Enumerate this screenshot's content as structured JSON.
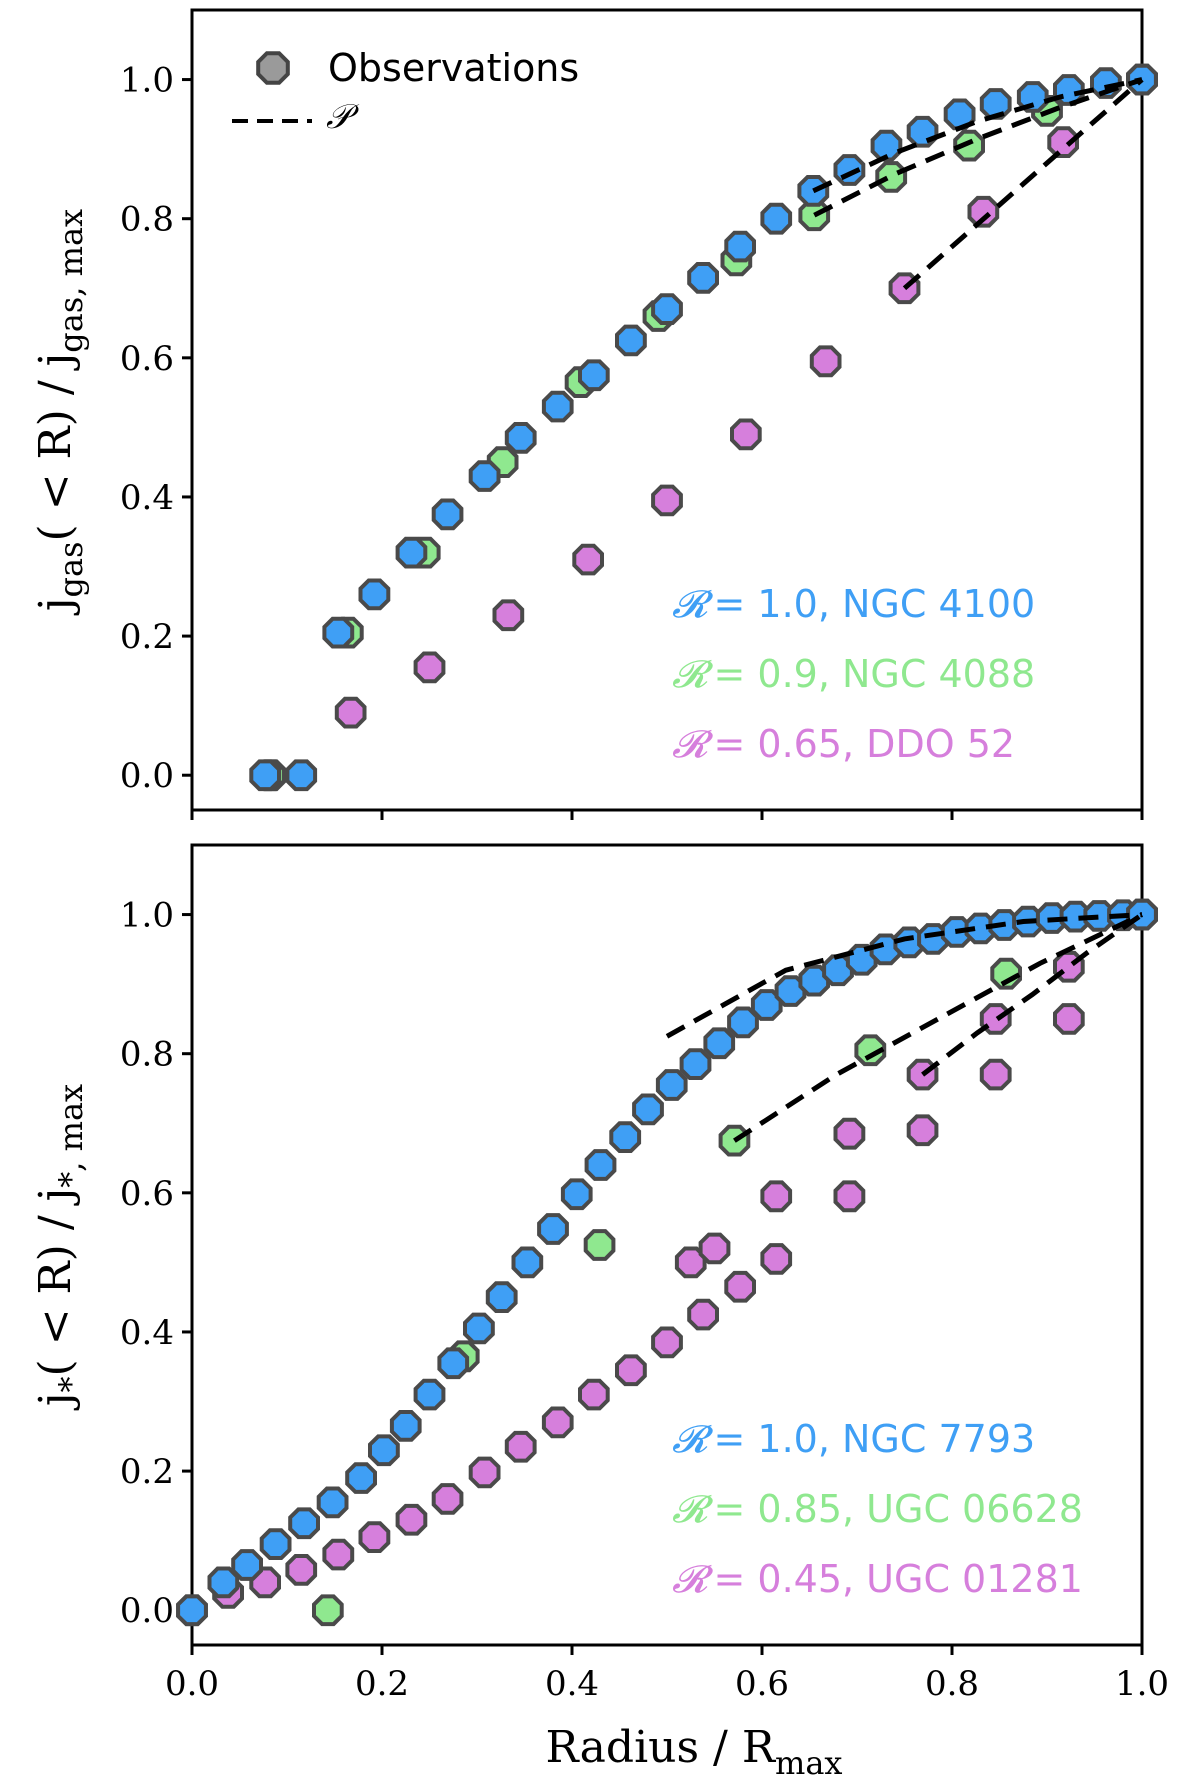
{
  "chart_data": [
    {
      "type": "scatter",
      "panel": "top",
      "title": "",
      "xlabel": "Radius / R_max",
      "ylabel": "j_gas(<R) / j_gas,max",
      "xlim": [
        0.0,
        1.0
      ],
      "ylim": [
        -0.05,
        1.1
      ],
      "xticks": [
        0.0,
        0.2,
        0.4,
        0.6,
        0.8,
        1.0
      ],
      "xtick_labels": [
        "",
        "",
        "",
        "",
        "",
        ""
      ],
      "yticks": [
        0.0,
        0.2,
        0.4,
        0.6,
        0.8,
        1.0
      ],
      "ytick_labels": [
        "0.0",
        "0.2",
        "0.4",
        "0.6",
        "0.8",
        "1.0"
      ],
      "legend": {
        "placement": "top-left",
        "entries": [
          {
            "label": "Observations",
            "marker": "octagon"
          },
          {
            "label": "𝒫",
            "marker": "dashed-line"
          }
        ]
      },
      "series": [
        {
          "name": "NGC 4100",
          "R": "1.0",
          "color": "#3f9ff5",
          "x": [
            0.077,
            0.115,
            0.154,
            0.192,
            0.231,
            0.269,
            0.308,
            0.346,
            0.385,
            0.423,
            0.462,
            0.5,
            0.538,
            0.577,
            0.615,
            0.654,
            0.692,
            0.731,
            0.769,
            0.808,
            0.846,
            0.885,
            0.923,
            0.962,
            1.0
          ],
          "y": [
            0.0,
            0.0,
            0.205,
            0.26,
            0.32,
            0.375,
            0.43,
            0.485,
            0.53,
            0.575,
            0.625,
            0.67,
            0.715,
            0.76,
            0.8,
            0.84,
            0.87,
            0.905,
            0.925,
            0.95,
            0.965,
            0.975,
            0.985,
            0.995,
            1.0
          ],
          "fit": {
            "x": [
              0.654,
              1.0
            ],
            "y": [
              0.84,
              1.0
            ],
            "curve": [
              0.0,
              0.25,
              0.5,
              0.75,
              1.0
            ],
            "curve_y": [
              0.84,
              0.895,
              0.94,
              0.975,
              1.0
            ]
          }
        },
        {
          "name": "NGC 4088",
          "R": "0.9",
          "color": "#8fe88f",
          "x": [
            0.082,
            0.164,
            0.245,
            0.327,
            0.409,
            0.491,
            0.573,
            0.655,
            0.736,
            0.818,
            0.9,
            1.0
          ],
          "y": [
            0.0,
            0.205,
            0.32,
            0.45,
            0.565,
            0.66,
            0.74,
            0.805,
            0.86,
            0.905,
            0.955,
            1.0
          ],
          "fit": {
            "x": [
              0.655,
              1.0
            ],
            "curve_y": [
              0.805,
              0.865,
              0.915,
              0.96,
              1.0
            ]
          }
        },
        {
          "name": "DDO 52",
          "R": "0.65",
          "color": "#d67fdc",
          "x": [
            0.083,
            0.167,
            0.25,
            0.333,
            0.417,
            0.5,
            0.583,
            0.667,
            0.75,
            0.833,
            0.917,
            1.0
          ],
          "y": [
            0.0,
            0.09,
            0.155,
            0.23,
            0.31,
            0.395,
            0.49,
            0.595,
            0.7,
            0.81,
            0.91,
            1.0
          ],
          "fit": {
            "x": [
              0.75,
              1.0
            ],
            "curve_y": [
              0.7,
              0.775,
              0.85,
              0.925,
              1.0
            ]
          }
        }
      ],
      "annotations": [
        {
          "symbol": "𝓡",
          "text": "= 1.0,  NGC 4100",
          "color": "#3f9ff5"
        },
        {
          "symbol": "𝓡",
          "text": "= 0.9,  NGC 4088",
          "color": "#8fe88f"
        },
        {
          "symbol": "𝓡",
          "text": "= 0.65,  DDO 52",
          "color": "#d67fdc"
        }
      ]
    },
    {
      "type": "scatter",
      "panel": "bottom",
      "title": "",
      "xlabel": "Radius / R_max",
      "ylabel": "j_*(<R) / j_*,max",
      "xlim": [
        0.0,
        1.0
      ],
      "ylim": [
        -0.05,
        1.1
      ],
      "xticks": [
        0.0,
        0.2,
        0.4,
        0.6,
        0.8,
        1.0
      ],
      "xtick_labels": [
        "0.0",
        "0.2",
        "0.4",
        "0.6",
        "0.8",
        "1.0"
      ],
      "yticks": [
        0.0,
        0.2,
        0.4,
        0.6,
        0.8,
        1.0
      ],
      "ytick_labels": [
        "0.0",
        "0.2",
        "0.4",
        "0.6",
        "0.8",
        "1.0"
      ],
      "series": [
        {
          "name": "NGC 7793",
          "R": "1.0",
          "color": "#3f9ff5",
          "x": [
            0.0,
            0.033,
            0.058,
            0.088,
            0.118,
            0.148,
            0.178,
            0.202,
            0.225,
            0.25,
            0.275,
            0.302,
            0.326,
            0.353,
            0.38,
            0.405,
            0.43,
            0.456,
            0.48,
            0.505,
            0.53,
            0.555,
            0.58,
            0.605,
            0.63,
            0.655,
            0.68,
            0.705,
            0.73,
            0.755,
            0.78,
            0.805,
            0.83,
            0.855,
            0.88,
            0.905,
            0.93,
            0.955,
            0.98,
            1.0
          ],
          "y": [
            0.0,
            0.04,
            0.065,
            0.095,
            0.125,
            0.155,
            0.19,
            0.23,
            0.265,
            0.31,
            0.355,
            0.405,
            0.45,
            0.5,
            0.548,
            0.598,
            0.64,
            0.68,
            0.72,
            0.755,
            0.785,
            0.815,
            0.845,
            0.87,
            0.89,
            0.905,
            0.92,
            0.935,
            0.95,
            0.96,
            0.965,
            0.975,
            0.98,
            0.985,
            0.99,
            0.995,
            0.997,
            0.998,
            0.999,
            1.0
          ],
          "fit": {
            "x": [
              0.5,
              1.0
            ],
            "curve_y": [
              0.825,
              0.92,
              0.965,
              0.99,
              1.0
            ]
          }
        },
        {
          "name": "UGC 06628",
          "R": "0.85",
          "color": "#8fe88f",
          "x": [
            0.143,
            0.286,
            0.429,
            0.571,
            0.714,
            0.857,
            1.0
          ],
          "y": [
            0.0,
            0.365,
            0.525,
            0.675,
            0.805,
            0.915,
            1.0
          ],
          "fit": {
            "x": [
              0.571,
              1.0
            ],
            "curve_y": [
              0.675,
              0.77,
              0.85,
              0.93,
              1.0
            ]
          }
        },
        {
          "name": "UGC 01281",
          "R": "0.45",
          "color": "#d67fdc",
          "x": [
            0.0,
            0.038,
            0.077,
            0.115,
            0.154,
            0.192,
            0.231,
            0.269,
            0.308,
            0.346,
            0.385,
            0.423,
            0.462,
            0.5,
            0.538,
            0.577,
            0.615,
            0.692,
            0.769,
            0.846,
            0.923,
            1.0
          ],
          "y": [
            0.0,
            0.025,
            0.04,
            0.058,
            0.08,
            0.105,
            0.13,
            0.16,
            0.198,
            0.235,
            0.27,
            0.31,
            0.345,
            0.385,
            0.425,
            0.465,
            0.505,
            0.595,
            0.69,
            0.77,
            0.85,
            1.0
          ],
          "extra_points": {
            "x": [
              0.525,
              0.55,
              0.615,
              0.692,
              0.769,
              0.846,
              0.923
            ],
            "y": [
              0.5,
              0.52,
              0.595,
              0.685,
              0.77,
              0.85,
              0.925
            ]
          },
          "fit": {
            "x": [
              0.769,
              1.0
            ],
            "curve_y": [
              0.77,
              0.83,
              0.885,
              0.945,
              1.0
            ]
          }
        }
      ],
      "annotations": [
        {
          "symbol": "𝓡",
          "text": "= 1.0,  NGC 7793",
          "color": "#3f9ff5"
        },
        {
          "symbol": "𝓡",
          "text": "= 0.85,  UGC 06628",
          "color": "#8fe88f"
        },
        {
          "symbol": "𝓡",
          "text": "= 0.45,  UGC 01281",
          "color": "#d67fdc"
        }
      ]
    }
  ],
  "labels": {
    "top_ylabel_main": "j",
    "top_ylabel_sub": "gas",
    "top_ylabel_mid": "( < R) / j",
    "top_ylabel_sub2": "gas, max",
    "bottom_ylabel_main": "j",
    "bottom_ylabel_sub": "*",
    "bottom_ylabel_mid": "( < R) / j",
    "bottom_ylabel_sub2": "*, max",
    "xlabel_main": "Radius / R",
    "xlabel_sub": "max"
  }
}
